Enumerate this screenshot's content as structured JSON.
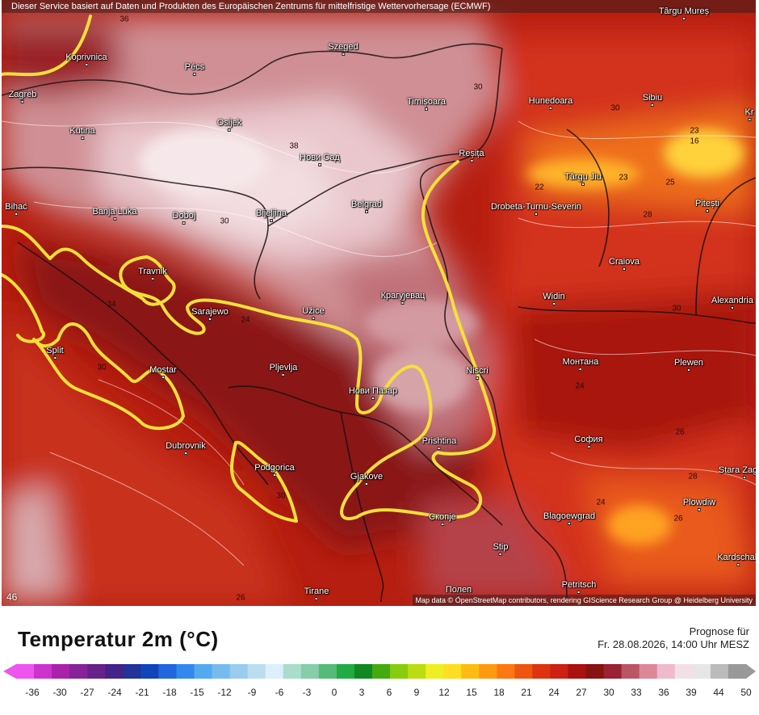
{
  "attribution_top": "Dieser Service basiert auf Daten und Produkten des Europäischen Zentrums für mittelfristige Wettervorhersage (ECMWF)",
  "attribution_bottom": "Map data © OpenStreetMap contributors, rendering GIScience Research Group @ Heidelberg University",
  "corner_value": "46",
  "legend": {
    "title": "Temperatur 2m (°C)",
    "forecast_label": "Prognose für",
    "forecast_time": "Fr. 28.08.2026, 14:00 Uhr MESZ",
    "ticks": [
      "-36",
      "-30",
      "-27",
      "-24",
      "-21",
      "-18",
      "-15",
      "-12",
      "-9",
      "-6",
      "-3",
      "0",
      "3",
      "6",
      "9",
      "12",
      "15",
      "18",
      "21",
      "24",
      "27",
      "30",
      "33",
      "36",
      "39",
      "44",
      "50"
    ]
  },
  "map": {
    "cities": [
      "Târgu Mureș",
      "Koprivnica",
      "Pécs",
      "Szeged",
      "Zagreb",
      "Hunedoara",
      "Sibiu",
      "Timișoara",
      "Osijek",
      "Kutina",
      "Нови Сад",
      "Reșița",
      "Târgu Jiu",
      "Banja Luka",
      "Doboj",
      "Bijeljina",
      "Belgrad",
      "Drobeta-Turnu-Severin",
      "Pitești",
      "Bihać",
      "Craiova",
      "Travnik",
      "Крагујевац",
      "Sarajewo",
      "Užice",
      "Alexandria",
      "Widin",
      "Split",
      "Mostar",
      "Pljevlja",
      "Niscri",
      "Монтана",
      "Plewen",
      "Нови Пазар",
      "Dubrovnik",
      "Prishtina",
      "София",
      "Podgorica",
      "Gjakove",
      "Скопје",
      "Blagoewgrad",
      "Plowdiw",
      "Stara Zagora",
      "Stip",
      "Kardschali",
      "Petritsch",
      "Tirane",
      "Полеп",
      "Kr"
    ],
    "isotherm_values": [
      "36",
      "30",
      "38",
      "30",
      "30",
      "24",
      "16",
      "23",
      "22",
      "23",
      "25",
      "26",
      "28",
      "30",
      "34",
      "30",
      "30",
      "24",
      "26",
      "28",
      "24",
      "26"
    ]
  },
  "colors": {
    "scale": [
      "#ee55ee",
      "#cc33cc",
      "#aa22aa",
      "#882299",
      "#662288",
      "#442288",
      "#223399",
      "#1144bb",
      "#2266dd",
      "#3388ee",
      "#55aaee",
      "#77bbee",
      "#99ccee",
      "#bbddee",
      "#ddeeff",
      "#aaddcc",
      "#88ccaa",
      "#55bb77",
      "#22aa44",
      "#118822",
      "#44aa11",
      "#88cc11",
      "#bbdd11",
      "#eeee22",
      "#ffdd22",
      "#ffbb11",
      "#ff9911",
      "#ff7711",
      "#ee5511",
      "#dd3311",
      "#cc2211",
      "#aa1111",
      "#881111",
      "#992233",
      "#bb5566",
      "#dd8899",
      "#eebbcc",
      "#f3e0e6",
      "#e6e6e6",
      "#bbbbbb",
      "#999999"
    ],
    "isotherm_highlight": "#f5e03a"
  }
}
